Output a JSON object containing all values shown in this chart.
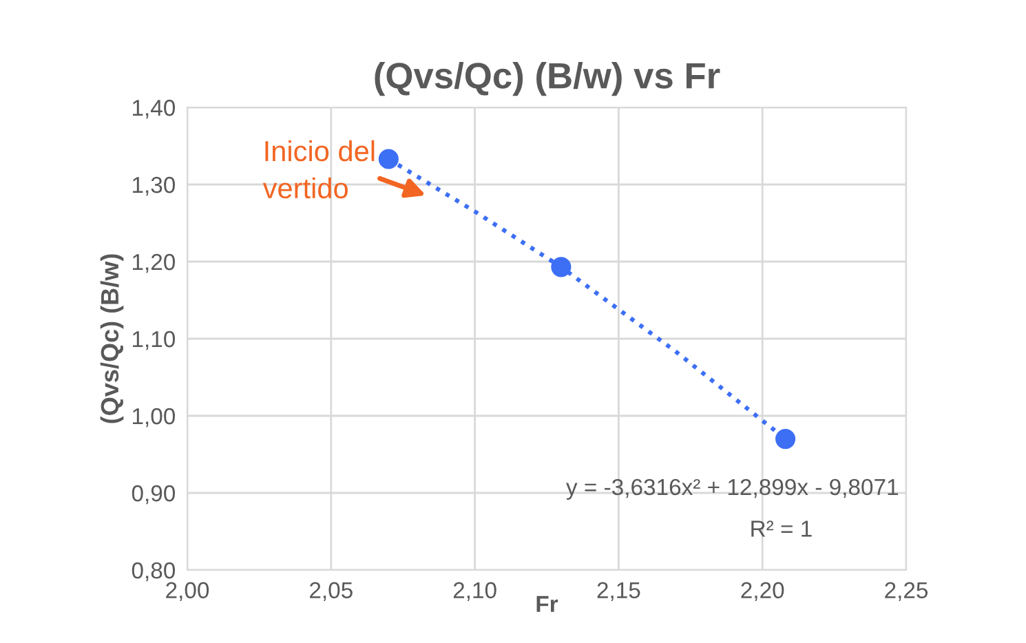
{
  "chart_data": {
    "type": "scatter",
    "title": "(Qvs/Qc) (B/w) vs Fr",
    "xlabel": "Fr",
    "ylabel": "(Qvs/Qc) (B/w)",
    "series": [
      {
        "color": "#3d6ff5",
        "x": [
          2.07,
          2.13,
          2.208
        ],
        "values": [
          1.333,
          1.193,
          0.97
        ],
        "marker": "circle"
      },
      {
        "type": "line",
        "color": "#3d6ff5",
        "x": [
          2.07,
          2.1,
          2.13,
          2.17,
          2.208
        ],
        "values": [
          1.333,
          1.265,
          1.193,
          1.083,
          0.97
        ],
        "line_style": "dotted",
        "marker": "none"
      }
    ],
    "annotations": [
      "Inicio del\nvertido",
      "y = -3,6316x² + 12,899x - 9,8071",
      "R² = 1"
    ],
    "xlim": [
      2.0,
      2.25
    ],
    "xticks": [
      {
        "value": 2.0,
        "label": "2,00"
      },
      {
        "value": 2.05,
        "label": "2,05"
      },
      {
        "value": 2.1,
        "label": "2,10"
      },
      {
        "value": 2.15,
        "label": "2,15"
      },
      {
        "value": 2.2,
        "label": "2,20"
      },
      {
        "value": 2.25,
        "label": "2,25"
      }
    ],
    "ylim": [
      0.8,
      1.4
    ],
    "yticks": [
      {
        "value": 0.8,
        "label": "0,80"
      },
      {
        "value": 0.9,
        "label": "0,90"
      },
      {
        "value": 1.0,
        "label": "1,00"
      },
      {
        "value": 1.1,
        "label": "1,10"
      },
      {
        "value": 1.2,
        "label": "1,20"
      },
      {
        "value": 1.3,
        "label": "1,30"
      },
      {
        "value": 1.4,
        "label": "1,40"
      }
    ],
    "grid": true,
    "legend": false
  }
}
